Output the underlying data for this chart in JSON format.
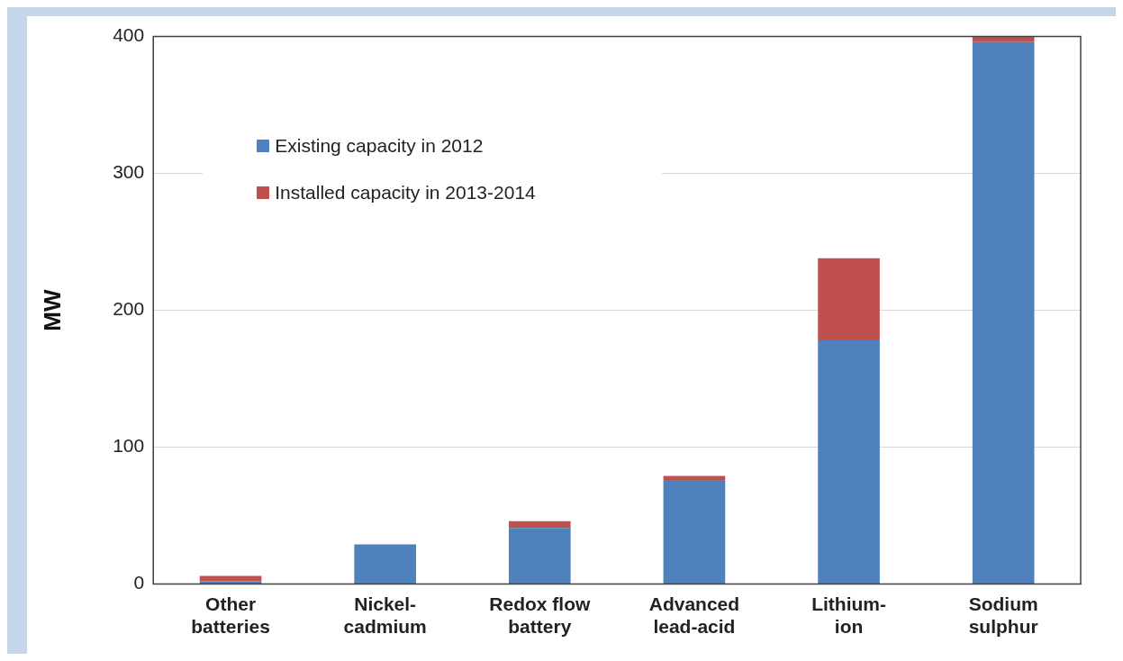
{
  "chart_data": {
    "type": "bar",
    "stacked": true,
    "ylabel": "MW",
    "categories": [
      "Other\nbatteries",
      "Nickel-\ncadmium",
      "Redox flow\nbattery",
      "Advanced\nlead-acid",
      "Lithium-\nion",
      "Sodium\nsulphur"
    ],
    "series": [
      {
        "name": "Existing capacity in 2012",
        "color": "#4f81bd",
        "values": [
          2,
          29,
          41,
          76,
          178,
          396
        ]
      },
      {
        "name": "Installed capacity in 2013-2014",
        "color": "#c0504d",
        "values": [
          4,
          0,
          5,
          3,
          60,
          4
        ]
      }
    ],
    "ylim": [
      0,
      400
    ],
    "yticks": [
      0,
      100,
      200,
      300,
      400
    ],
    "grid": "y",
    "legend": "top left"
  }
}
